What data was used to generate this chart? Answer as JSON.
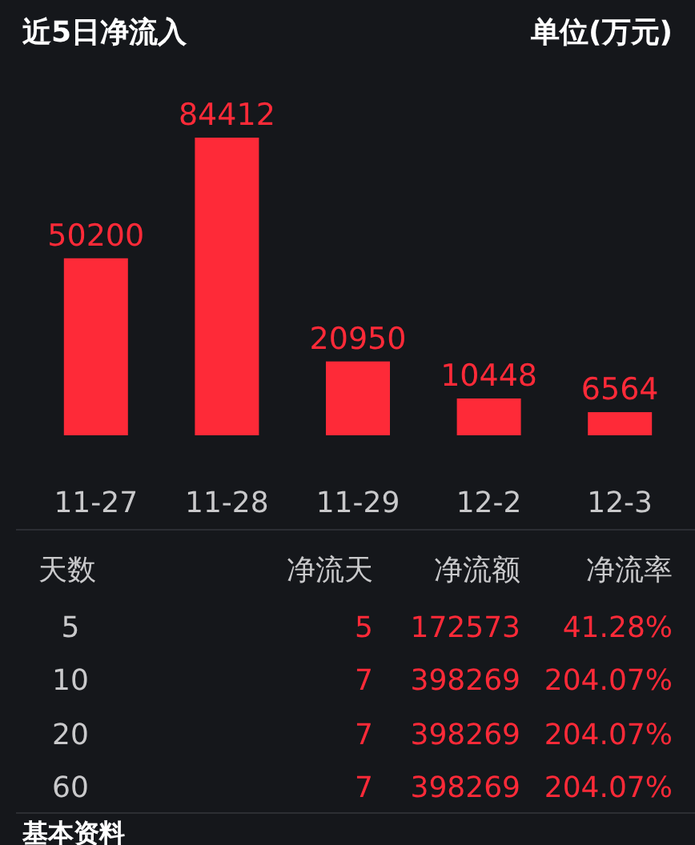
{
  "chart_data": [
    {
      "type": "bar",
      "title": "近5日净流入",
      "subtitle": "单位(万元)",
      "categories": [
        "11-27",
        "11-28",
        "11-29",
        "12-2",
        "12-3"
      ],
      "values": [
        50200,
        84412,
        20950,
        10448,
        6564
      ],
      "color": "#fe2a38",
      "data_labels": true
    },
    {
      "type": "other",
      "annotations": [
        "天数",
        "净流天",
        "净流额",
        "净流率",
        "5",
        "5",
        "172573",
        "41.28%",
        "10",
        "7",
        "398269",
        "204.07%",
        "20",
        "7",
        "398269",
        "204.07%",
        "60",
        "7",
        "398269",
        "204.07%"
      ]
    },
    {
      "type": "other",
      "title": "基本资料"
    }
  ]
}
